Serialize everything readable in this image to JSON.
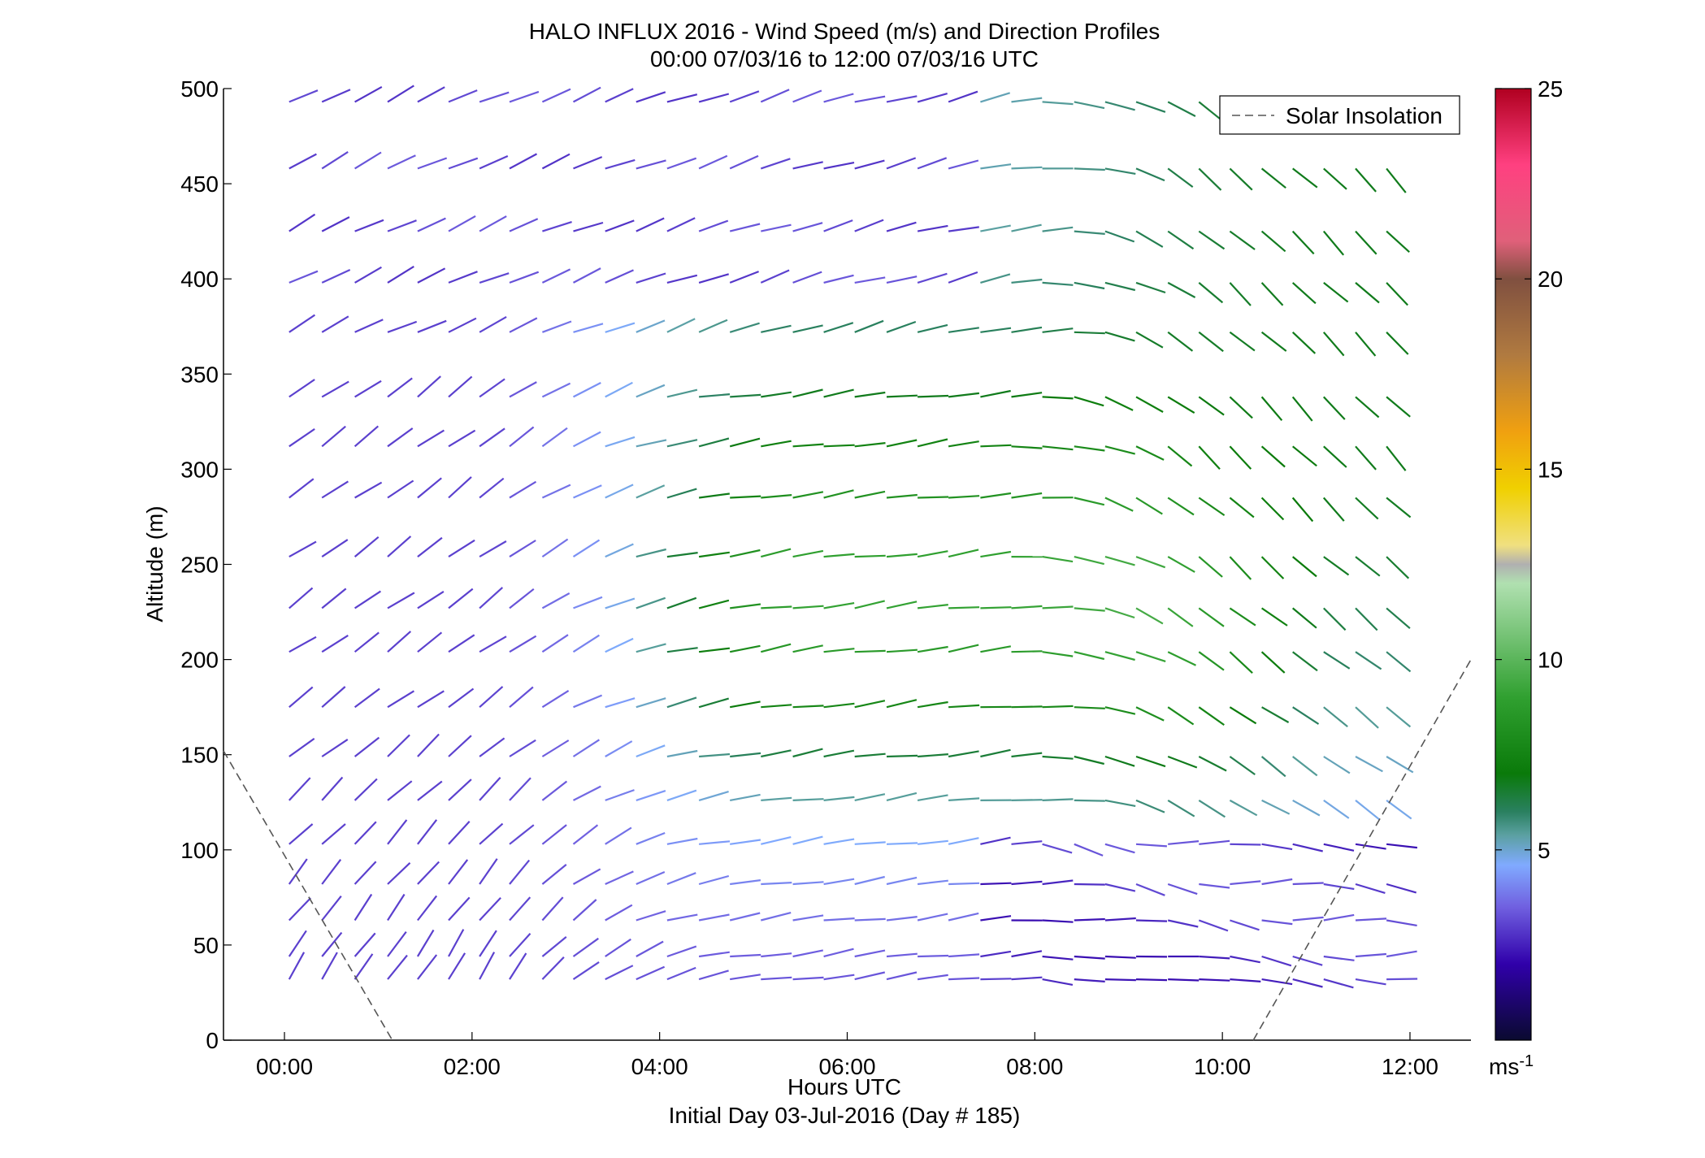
{
  "chart_data": {
    "type": "vector-field",
    "title": "HALO INFLUX 2016 - Wind Speed (m/s) and Direction Profiles",
    "subtitle": "00:00 07/03/16 to 12:00 07/03/16  UTC",
    "xlabel": "Hours UTC",
    "xlabel2": "Initial Day 03-Jul-2016 (Day # 185)",
    "ylabel": "Altitude (m)",
    "xlim_hours": [
      -0.65,
      12.65
    ],
    "ylim": [
      0,
      500
    ],
    "x_ticks": [
      {
        "value": 0,
        "label": "00:00"
      },
      {
        "value": 2,
        "label": "02:00"
      },
      {
        "value": 4,
        "label": "04:00"
      },
      {
        "value": 6,
        "label": "06:00"
      },
      {
        "value": 8,
        "label": "08:00"
      },
      {
        "value": 10,
        "label": "10:00"
      },
      {
        "value": 12,
        "label": "12:00"
      }
    ],
    "y_ticks": [
      0,
      50,
      100,
      150,
      200,
      250,
      300,
      350,
      400,
      450,
      500
    ],
    "colorbar": {
      "min": 0,
      "max": 25,
      "ticks": [
        5,
        10,
        15,
        20,
        25
      ],
      "unit": "ms",
      "unit_exp": "-1",
      "colormap": [
        [
          0,
          "#0a0a30"
        ],
        [
          2,
          "#3000aa"
        ],
        [
          3.5,
          "#7060e0"
        ],
        [
          4.6,
          "#80aaff"
        ],
        [
          5.4,
          "#5aa0a0"
        ],
        [
          6,
          "#2a8060"
        ],
        [
          7,
          "#0a7a0a"
        ],
        [
          9,
          "#30a030"
        ],
        [
          12,
          "#b0e0b0"
        ],
        [
          12.5,
          "#b0b0b0"
        ],
        [
          13,
          "#f0e080"
        ],
        [
          14.5,
          "#f0d000"
        ],
        [
          16,
          "#f0a010"
        ],
        [
          18,
          "#b07a40"
        ],
        [
          20,
          "#805040"
        ],
        [
          21,
          "#e0607a"
        ],
        [
          23,
          "#ff4080"
        ],
        [
          25,
          "#b00020"
        ]
      ]
    },
    "altitudes": [
      32,
      44,
      63,
      82,
      103,
      126,
      149,
      175,
      204,
      227,
      254,
      285,
      312,
      338,
      372,
      398,
      425,
      458,
      493
    ],
    "times_hours": [
      0.05,
      0.4,
      0.75,
      1.1,
      1.42,
      1.75,
      2.08,
      2.4,
      2.75,
      3.08,
      3.42,
      3.75,
      4.08,
      4.42,
      4.75,
      5.08,
      5.42,
      5.75,
      6.08,
      6.42,
      6.75,
      7.08,
      7.42,
      7.75,
      8.08,
      8.42,
      8.75,
      9.08,
      9.42,
      9.75,
      10.08,
      10.42,
      10.75,
      11.08,
      11.42,
      11.75
    ],
    "legend": {
      "label": "Solar Insolation",
      "position": "top-right"
    },
    "solar_insolation": [
      {
        "x": -0.65,
        "y": 152
      },
      {
        "x": 1.15,
        "y": 0
      },
      {
        "x": 10.33,
        "y": 0
      },
      {
        "x": 12.65,
        "y": 200
      }
    ]
  }
}
